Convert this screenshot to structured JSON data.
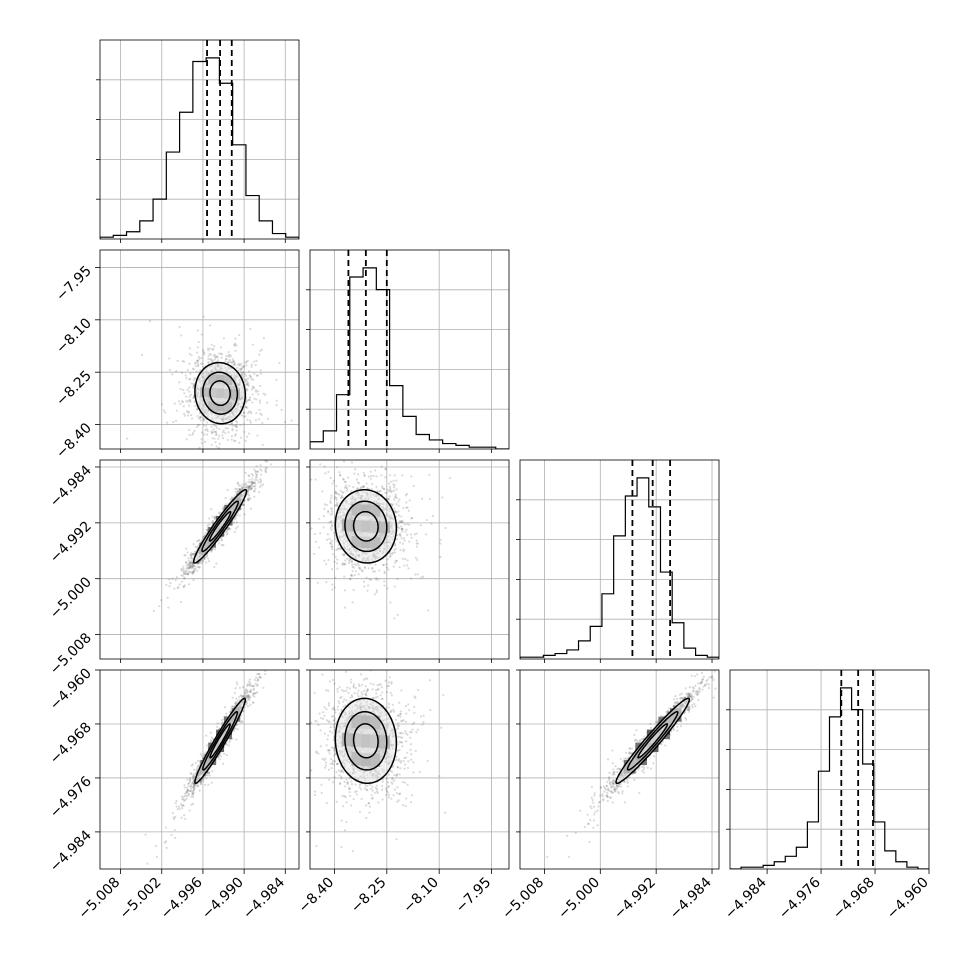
{
  "chart_data": {
    "type": "corner",
    "description_free": true,
    "grid": true,
    "parameters": [
      {
        "range": [
          -5.011,
          -4.982
        ],
        "ticks": [
          -5.008,
          -5.002,
          -4.996,
          -4.99,
          -4.984
        ],
        "tick_labels": [
          "−5.008",
          "−5.002",
          "−4.996",
          "−4.990",
          "−4.984"
        ],
        "median": -4.9935,
        "q16": -4.9954,
        "q84": -4.9918,
        "hist_counts": [
          1,
          2,
          4,
          10,
          22,
          48,
          70,
          98,
          100,
          86,
          52,
          24,
          10,
          3,
          1
        ]
      },
      {
        "range": [
          -8.47,
          -7.9
        ],
        "ticks": [
          -8.4,
          -8.25,
          -8.1,
          -7.95
        ],
        "tick_labels": [
          "−8.40",
          "−8.25",
          "−8.10",
          "−7.95"
        ],
        "median": -8.31,
        "q16": -8.36,
        "q84": -8.25,
        "hist_counts": [
          4,
          10,
          30,
          95,
          100,
          88,
          35,
          18,
          8,
          5,
          3,
          2,
          1,
          1,
          0
        ]
      },
      {
        "range": [
          -5.0115,
          -4.983
        ],
        "ticks": [
          -5.008,
          -5.0,
          -4.992,
          -4.984
        ],
        "tick_labels": [
          "−5.008",
          "−5.000",
          "−4.992",
          "−4.984"
        ],
        "median": -4.9925,
        "q16": -4.9954,
        "q84": -4.99,
        "hist_counts": [
          1,
          1,
          2,
          3,
          5,
          10,
          18,
          36,
          68,
          90,
          100,
          84,
          48,
          20,
          6,
          2,
          1
        ]
      },
      {
        "range": [
          -4.9895,
          -4.96
        ],
        "ticks": [
          -4.984,
          -4.976,
          -4.968,
          -4.96
        ],
        "tick_labels": [
          "−4.984",
          "−4.976",
          "−4.968",
          "−4.960"
        ],
        "median": -4.9705,
        "q16": -4.973,
        "q84": -4.9683,
        "hist_counts": [
          0,
          1,
          1,
          2,
          4,
          7,
          12,
          26,
          54,
          84,
          100,
          88,
          58,
          26,
          10,
          4,
          1,
          0
        ]
      }
    ],
    "pairs": [
      {
        "row": 1,
        "col": 0,
        "center": [
          -4.9935,
          -8.31
        ],
        "sd": [
          0.0021,
          0.05
        ],
        "corr": -0.05
      },
      {
        "row": 2,
        "col": 0,
        "center": [
          -4.9935,
          -4.9925
        ],
        "sd": [
          0.0022,
          0.003
        ],
        "corr": 0.96
      },
      {
        "row": 2,
        "col": 1,
        "center": [
          -8.31,
          -4.9925
        ],
        "sd": [
          0.05,
          0.003
        ],
        "corr": -0.05
      },
      {
        "row": 3,
        "col": 0,
        "center": [
          -4.9935,
          -4.9705
        ],
        "sd": [
          0.0021,
          0.0036
        ],
        "corr": 0.97
      },
      {
        "row": 3,
        "col": 1,
        "center": [
          -8.31,
          -4.9705
        ],
        "sd": [
          0.05,
          0.0036
        ],
        "corr": -0.05
      },
      {
        "row": 3,
        "col": 2,
        "center": [
          -4.9925,
          -4.9705
        ],
        "sd": [
          0.003,
          0.0036
        ],
        "corr": 0.97
      }
    ]
  }
}
